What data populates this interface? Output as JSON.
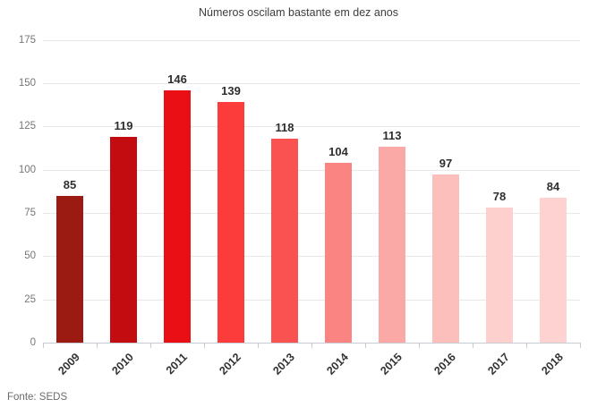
{
  "chart": {
    "title": "Números oscilam bastante em dez anos",
    "source": "Fonte: SEDS"
  },
  "chart_data": {
    "type": "bar",
    "title": "Números oscilam bastante em dez anos",
    "categories": [
      "2009",
      "2010",
      "2011",
      "2012",
      "2013",
      "2014",
      "2015",
      "2016",
      "2017",
      "2018"
    ],
    "values": [
      85,
      119,
      146,
      139,
      118,
      104,
      113,
      97,
      78,
      84
    ],
    "bar_colors": [
      "#9b1b12",
      "#c30c10",
      "#e90f15",
      "#fb3c3a",
      "#fa5250",
      "#fa8481",
      "#fba9a6",
      "#fcbfbc",
      "#fdd0ce",
      "#fdd2d0"
    ],
    "xlabel": "",
    "ylabel": "",
    "ylim": [
      0,
      175
    ],
    "y_ticks": [
      0,
      25,
      50,
      75,
      100,
      125,
      150,
      175
    ],
    "grid": "horizontal",
    "legend": "none",
    "value_labels": true,
    "source": "Fonte: SEDS",
    "value_label_color": "#2e2e2e",
    "axis_label_color": "#767676",
    "category_label_color": "#333333",
    "gridline_color": "#e8e8e8",
    "axis_line_color": "#c7ccd3",
    "background_color": "#ffffff"
  }
}
